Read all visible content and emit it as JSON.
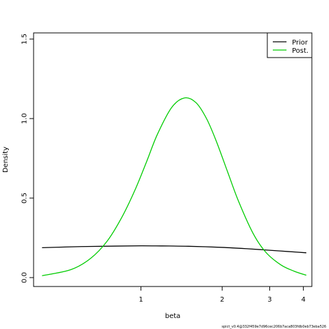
{
  "chart_data": {
    "type": "line",
    "xlabel": "beta",
    "ylabel": "Density",
    "x_scale": "log",
    "xlim": [
      0.4,
      4.3
    ],
    "ylim": [
      0,
      1.5
    ],
    "x_ticks": [
      1,
      2,
      3,
      4
    ],
    "y_ticks": [
      0.0,
      0.5,
      1.0,
      1.5
    ],
    "y_tick_labels": [
      "0.0",
      "0.5",
      "1.0",
      "1.5"
    ],
    "grid": false,
    "legend_position": "top-right",
    "series": [
      {
        "name": "Prior",
        "color": "#000000",
        "x": [
          0.43,
          0.6,
          0.8,
          1.0,
          1.2,
          1.5,
          2.0,
          2.5,
          3.0,
          3.5,
          4.1
        ],
        "y": [
          0.188,
          0.195,
          0.198,
          0.2,
          0.199,
          0.197,
          0.19,
          0.181,
          0.172,
          0.164,
          0.156
        ]
      },
      {
        "name": "Post.",
        "color": "#00cc00",
        "x": [
          0.43,
          0.55,
          0.65,
          0.75,
          0.85,
          0.95,
          1.05,
          1.15,
          1.3,
          1.45,
          1.6,
          1.75,
          1.9,
          2.1,
          2.3,
          2.6,
          2.9,
          3.3,
          3.7,
          4.1
        ],
        "y": [
          0.012,
          0.05,
          0.12,
          0.23,
          0.38,
          0.55,
          0.73,
          0.9,
          1.07,
          1.13,
          1.1,
          1.0,
          0.86,
          0.66,
          0.48,
          0.28,
          0.16,
          0.08,
          0.04,
          0.015
        ]
      }
    ]
  },
  "footnote": "spict_v0.4@332f459e7d96cec206b7aca803fdb0eb73eba526"
}
